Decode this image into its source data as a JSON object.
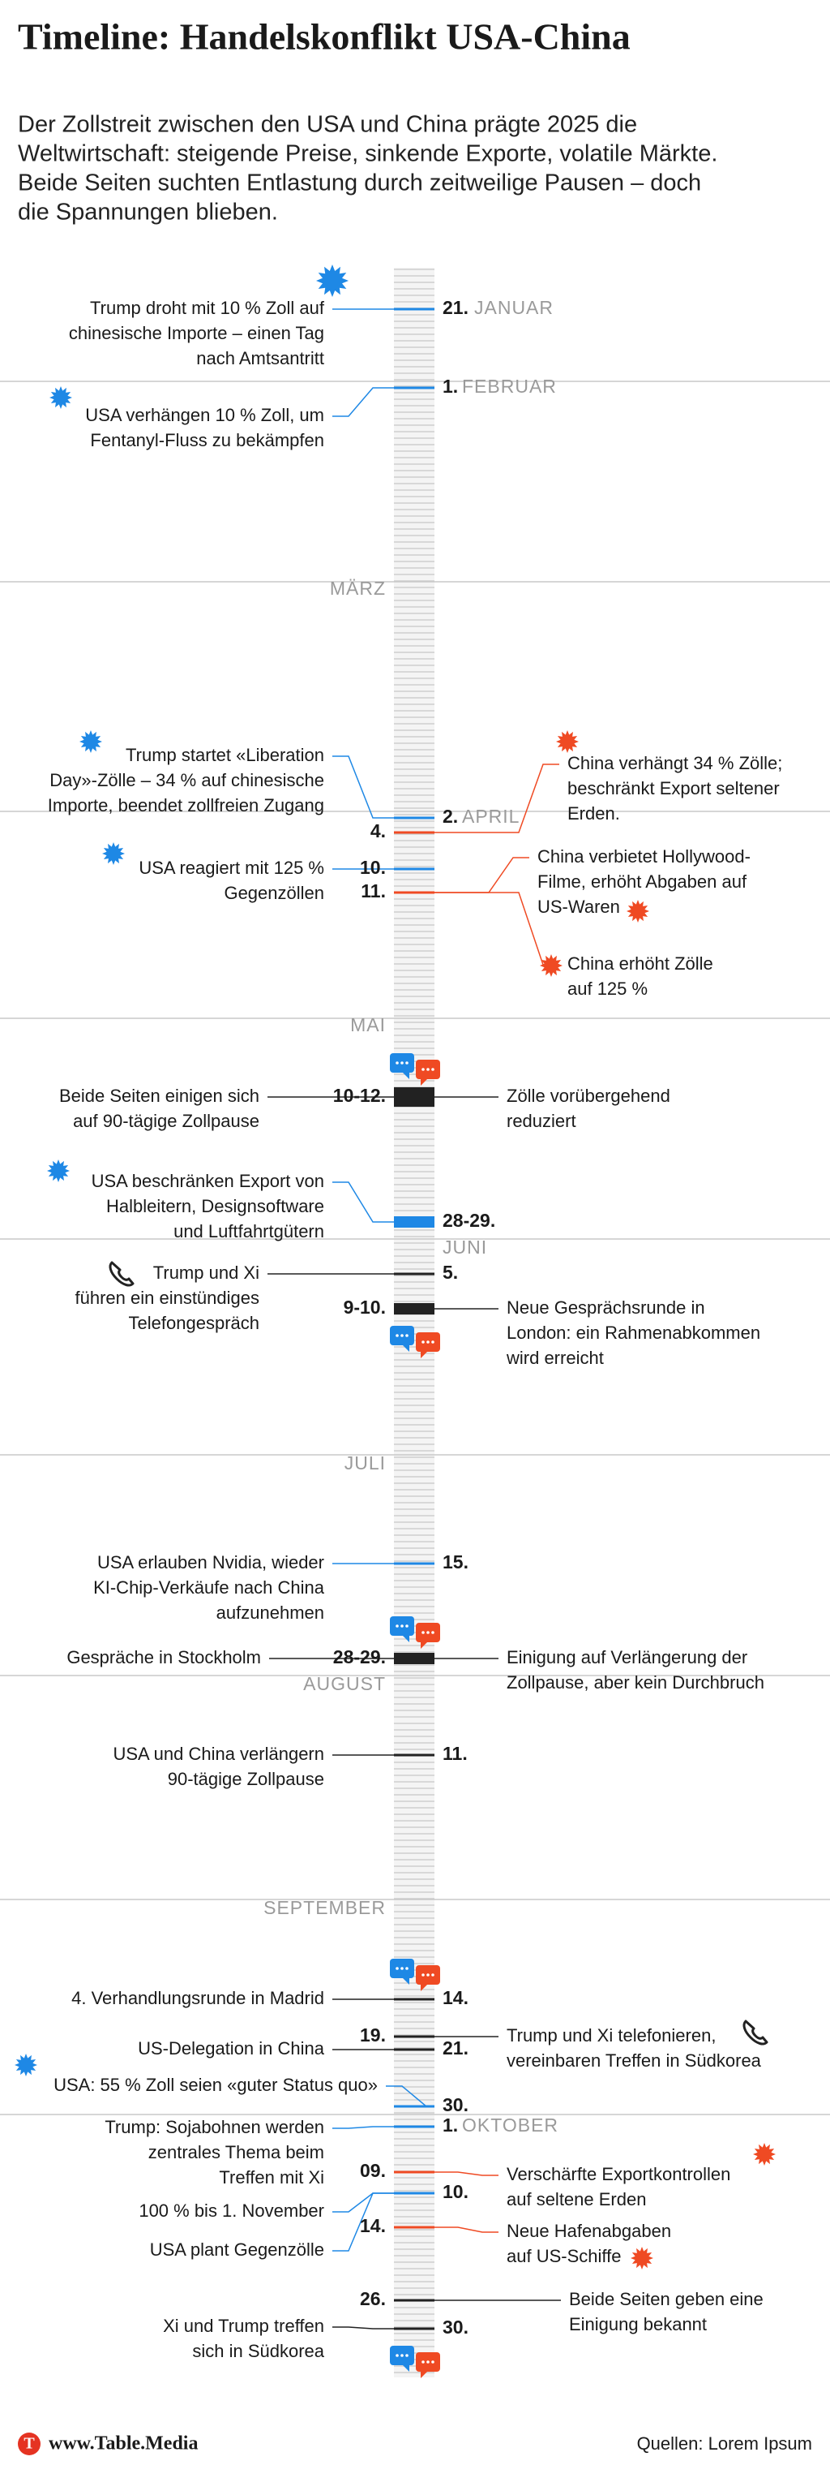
{
  "header": {
    "title": "Timeline: Handelskonflikt USA-China",
    "intro": [
      "Der Zollstreit zwischen den USA und China prägte 2025 die",
      "Weltwirtschaft: steigende Preise, sinkende Exporte, volatile Märkte.",
      "Beide Seiten suchten Entlastung durch zeitweilige Pausen – doch",
      "die Spannungen blieben."
    ]
  },
  "months": [
    "JANUAR",
    "FEBRUAR",
    "MÄRZ",
    "APRIL",
    "MAI",
    "JUNI",
    "JULI",
    "AUGUST",
    "SEPTEMBER",
    "OKTOBER"
  ],
  "events": [
    {
      "date": "21.",
      "left": [
        "Trump droht mit 10 % Zoll auf",
        "chinesische Importe – einen Tag",
        "nach Amtsantritt"
      ],
      "color": "#1e88e5"
    },
    {
      "date": "1.",
      "left": [
        "USA verhängen 10 % Zoll, um",
        "Fentanyl-Fluss zu bekämpfen"
      ],
      "color": "#1e88e5"
    },
    {
      "date": "2.",
      "left": [
        "Trump startet «Liberation",
        "Day»-Zölle – 34 % auf chinesische",
        "Importe, beendet zollfreien Zugang"
      ],
      "color": "#1e88e5"
    },
    {
      "date": "4.",
      "right": [
        "China verhängt 34 % Zölle;",
        "beschränkt Export seltener",
        "Erden."
      ],
      "color": "#ef4a23"
    },
    {
      "date": "10.",
      "left": [
        "USA reagiert mit 125 %",
        "Gegenzöllen"
      ],
      "color": "#1e88e5"
    },
    {
      "date": "11.",
      "right": [
        "China verbietet Hollywood-",
        "Filme, erhöht Abgaben auf",
        "US-Waren"
      ],
      "color": "#ef4a23"
    },
    {
      "right": [
        "China erhöht Zölle",
        "auf 125 %"
      ],
      "color": "#ef4a23"
    },
    {
      "date": "10-12.",
      "left": [
        "Beide Seiten einigen sich",
        "auf 90-tägige Zollpause"
      ],
      "right": [
        "Zölle vorübergehend",
        "reduziert"
      ],
      "color": "#222222"
    },
    {
      "date": "28-29.",
      "left": [
        "USA beschränken Export von",
        "Halbleitern, Designsoftware",
        "und Luftfahrtgütern"
      ],
      "color": "#1e88e5"
    },
    {
      "date": "5.",
      "left": [
        "Trump und Xi",
        "führen ein einstündiges",
        "Telefongespräch"
      ],
      "color": "#222222"
    },
    {
      "date": "9-10.",
      "right": [
        "Neue Gesprächsrunde in",
        "London: ein Rahmenabkommen",
        "wird erreicht"
      ],
      "color": "#222222"
    },
    {
      "date": "15.",
      "left": [
        "USA erlauben Nvidia, wieder",
        "KI-Chip-Verkäufe nach China",
        "aufzunehmen"
      ],
      "color": "#1e88e5"
    },
    {
      "date": "28-29.",
      "left": [
        "Gespräche in Stockholm"
      ],
      "right": [
        "Einigung auf Verlängerung der",
        "Zollpause, aber kein Durchbruch"
      ],
      "color": "#222222"
    },
    {
      "date": "11.",
      "left": [
        "USA und China verlängern",
        "90-tägige Zollpause"
      ],
      "color": "#222222"
    },
    {
      "date": "14.",
      "left": [
        "4. Verhandlungsrunde in Madrid"
      ],
      "color": "#222222"
    },
    {
      "date": "19.",
      "right": [
        "Trump und Xi telefonieren,",
        "vereinbaren Treffen in Südkorea"
      ],
      "color": "#222222"
    },
    {
      "date": "21.",
      "left": [
        "US-Delegation in China"
      ],
      "color": "#222222"
    },
    {
      "date": "30.",
      "left": [
        "USA: 55 % Zoll seien «guter Status quo»"
      ],
      "color": "#1e88e5"
    },
    {
      "date": "1.",
      "left": [
        "Trump: Sojabohnen werden",
        "zentrales Thema beim",
        "Treffen mit Xi"
      ],
      "color": "#1e88e5"
    },
    {
      "date": "09.",
      "right": [
        "Verschärfte Exportkontrollen",
        "auf seltene Erden"
      ],
      "color": "#ef4a23"
    },
    {
      "date": "10.",
      "left": [
        "100 % bis 1. November"
      ],
      "color": "#1e88e5"
    },
    {
      "left": [
        "USA plant Gegenzölle"
      ],
      "color": "#1e88e5"
    },
    {
      "date": "14.",
      "right": [
        "Neue Hafenabgaben",
        "auf US-Schiffe"
      ],
      "color": "#ef4a23"
    },
    {
      "date": "26.",
      "right": [
        "Beide Seiten geben eine",
        "Einigung bekannt"
      ],
      "color": "#222222"
    },
    {
      "date": "30.",
      "left": [
        "Xi und Trump treffen",
        "sich in Südkorea"
      ],
      "color": "#222222"
    }
  ],
  "footer": {
    "logo": "T",
    "site": "www.Table.Media",
    "source": "Quellen: Lorem Ipsum"
  }
}
